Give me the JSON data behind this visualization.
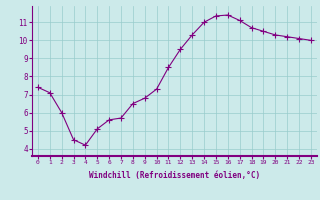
{
  "x": [
    0,
    1,
    2,
    3,
    4,
    5,
    6,
    7,
    8,
    9,
    10,
    11,
    12,
    13,
    14,
    15,
    16,
    17,
    18,
    19,
    20,
    21,
    22,
    23
  ],
  "y": [
    7.4,
    7.1,
    6.0,
    4.5,
    4.2,
    5.1,
    5.6,
    5.7,
    6.5,
    6.8,
    7.3,
    8.5,
    9.5,
    10.3,
    11.0,
    11.35,
    11.4,
    11.1,
    10.7,
    10.5,
    10.3,
    10.2,
    10.1,
    10.0
  ],
  "line_color": "#800080",
  "marker": "+",
  "marker_size": 4,
  "bg_color": "#cceaea",
  "grid_color": "#99cccc",
  "xlabel": "Windchill (Refroidissement éolien,°C)",
  "ytick_labels": [
    "4",
    "5",
    "6",
    "7",
    "8",
    "9",
    "10",
    "11"
  ],
  "ytick_values": [
    4,
    5,
    6,
    7,
    8,
    9,
    10,
    11
  ],
  "xlim": [
    -0.5,
    23.5
  ],
  "ylim": [
    3.6,
    11.9
  ],
  "xlabel_color": "#800080",
  "tick_color": "#800080",
  "spine_color": "#800080",
  "xtick_fontsize": 4.5,
  "ytick_fontsize": 5.5,
  "xlabel_fontsize": 5.5
}
